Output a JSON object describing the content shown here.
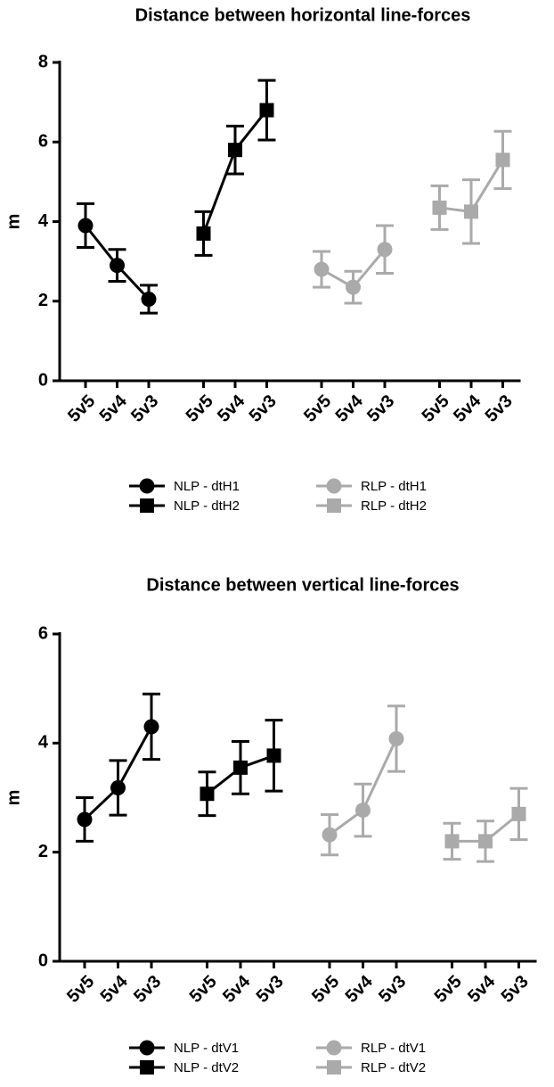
{
  "chart_data": [
    {
      "type": "line",
      "title": "Distance between horizontal line-forces",
      "y_label": "m",
      "categories": [
        "5v5",
        "5v4",
        "5v3",
        "5v5",
        "5v4",
        "5v3",
        "5v5",
        "5v4",
        "5v3",
        "5v5",
        "5v4",
        "5v3"
      ],
      "ylim": [
        0,
        8
      ],
      "yticks": [
        0,
        2,
        4,
        6,
        8
      ],
      "series": [
        {
          "name": "NLP - dtH1",
          "color": "#000000",
          "marker": "circle",
          "values": [
            3.9,
            2.9,
            2.05,
            null,
            null,
            null,
            null,
            null,
            null,
            null,
            null,
            null
          ],
          "errors": [
            0.55,
            0.4,
            0.35,
            null,
            null,
            null,
            null,
            null,
            null,
            null,
            null,
            null
          ]
        },
        {
          "name": "NLP - dtH2",
          "color": "#000000",
          "marker": "square",
          "values": [
            null,
            null,
            null,
            3.7,
            5.8,
            6.8,
            null,
            null,
            null,
            null,
            null,
            null
          ],
          "errors": [
            null,
            null,
            null,
            0.55,
            0.6,
            0.75,
            null,
            null,
            null,
            null,
            null,
            null
          ]
        },
        {
          "name": "RLP - dtH1",
          "color": "#aaaaaa",
          "marker": "circle",
          "values": [
            null,
            null,
            null,
            null,
            null,
            null,
            2.8,
            2.35,
            3.3,
            null,
            null,
            null
          ],
          "errors": [
            null,
            null,
            null,
            null,
            null,
            null,
            0.45,
            0.4,
            0.6,
            null,
            null,
            null
          ]
        },
        {
          "name": "RLP - dtH2",
          "color": "#aaaaaa",
          "marker": "square",
          "values": [
            null,
            null,
            null,
            null,
            null,
            null,
            null,
            null,
            null,
            4.35,
            4.25,
            5.55
          ],
          "errors": [
            null,
            null,
            null,
            null,
            null,
            null,
            null,
            null,
            null,
            0.55,
            0.8,
            0.72
          ]
        }
      ]
    },
    {
      "type": "line",
      "title": "Distance between vertical line-forces",
      "y_label": "m",
      "categories": [
        "5v5",
        "5v4",
        "5v3",
        "5v5",
        "5v4",
        "5v3",
        "5v5",
        "5v4",
        "5v3",
        "5v5",
        "5v4",
        "5v3"
      ],
      "ylim": [
        0,
        6
      ],
      "yticks": [
        0,
        2,
        4,
        6
      ],
      "series": [
        {
          "name": "NLP - dtV1",
          "color": "#000000",
          "marker": "circle",
          "values": [
            2.6,
            3.18,
            4.3,
            null,
            null,
            null,
            null,
            null,
            null,
            null,
            null,
            null
          ],
          "errors": [
            0.4,
            0.5,
            0.6,
            null,
            null,
            null,
            null,
            null,
            null,
            null,
            null,
            null
          ]
        },
        {
          "name": "NLP - dtV2",
          "color": "#000000",
          "marker": "square",
          "values": [
            null,
            null,
            null,
            3.07,
            3.55,
            3.77,
            null,
            null,
            null,
            null,
            null,
            null
          ],
          "errors": [
            null,
            null,
            null,
            0.4,
            0.48,
            0.65,
            null,
            null,
            null,
            null,
            null,
            null
          ]
        },
        {
          "name": "RLP - dtV1",
          "color": "#aaaaaa",
          "marker": "circle",
          "values": [
            null,
            null,
            null,
            null,
            null,
            null,
            2.32,
            2.77,
            4.08,
            null,
            null,
            null
          ],
          "errors": [
            null,
            null,
            null,
            null,
            null,
            null,
            0.37,
            0.48,
            0.6,
            null,
            null,
            null
          ]
        },
        {
          "name": "RLP - dtV2",
          "color": "#aaaaaa",
          "marker": "square",
          "values": [
            null,
            null,
            null,
            null,
            null,
            null,
            null,
            null,
            null,
            2.2,
            2.2,
            2.7
          ],
          "errors": [
            null,
            null,
            null,
            null,
            null,
            null,
            null,
            null,
            null,
            0.33,
            0.37,
            0.47
          ]
        }
      ]
    }
  ]
}
